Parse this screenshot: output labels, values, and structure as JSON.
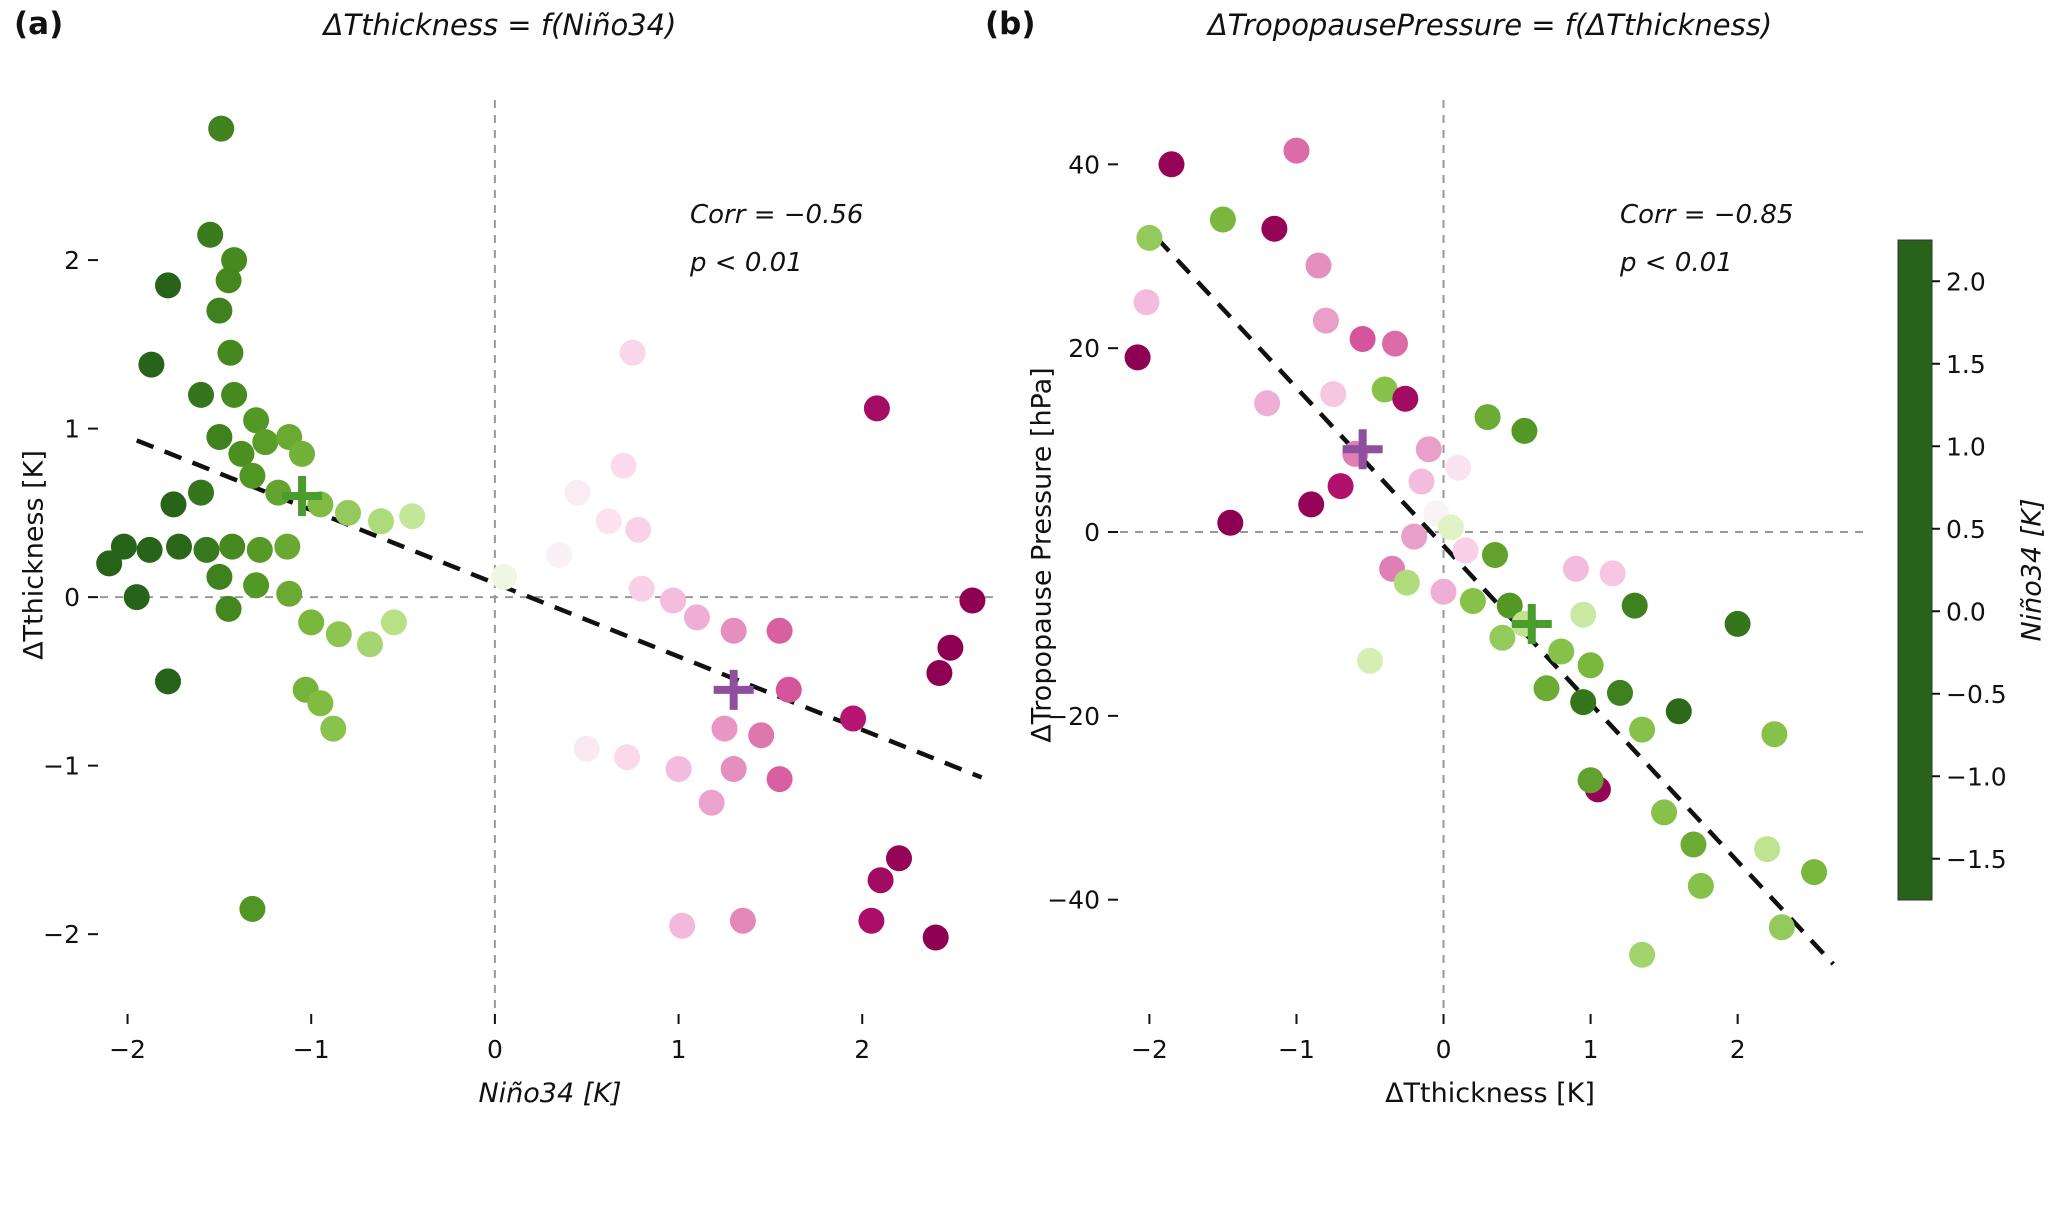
{
  "colorbar": {
    "label": "Niño34 [K]",
    "tick_labels": [
      "2.0",
      "1.5",
      "1.0",
      "0.5",
      "0.0",
      "−0.5",
      "−1.0",
      "−1.5"
    ],
    "tick_values": [
      2.0,
      1.5,
      1.0,
      0.5,
      0.0,
      -0.5,
      -1.0,
      -1.5
    ],
    "vmin": -1.75,
    "vmax": 2.25,
    "colormap": "PiYG_r",
    "colors": [
      "#276419",
      "#4d9221",
      "#7fbc41",
      "#b8e186",
      "#e6f5d0",
      "#f7f7f7",
      "#fde0ef",
      "#f1b6da",
      "#de77ae",
      "#c51b7d",
      "#8e0152"
    ]
  },
  "chart_data": [
    {
      "type": "scatter",
      "panel_label": "(a)",
      "title": "ΔTthickness = f(Niño34)",
      "xlabel": "Niño34 [K]",
      "ylabel": "ΔTthickness [K]",
      "corr_text": "Corr = −0.56",
      "p_text": "p < 0.01",
      "xlim": [
        -2.15,
        2.75
      ],
      "ylim": [
        -2.45,
        2.95
      ],
      "xticks": {
        "values": [
          -2,
          -1,
          0,
          1,
          2
        ],
        "labels": [
          "−2",
          "−1",
          "0",
          "1",
          "2"
        ]
      },
      "yticks": {
        "values": [
          -2,
          -1,
          0,
          1,
          2
        ],
        "labels": [
          "−2",
          "−1",
          "0",
          "1",
          "2"
        ]
      },
      "zero_lines": true,
      "regression_line": {
        "x1": -1.95,
        "y1": 0.93,
        "x2": 2.65,
        "y2": -1.07
      },
      "means": [
        {
          "x": -1.05,
          "y": 0.6,
          "color": "#4a9d2d",
          "name": "composite-mean-negative"
        },
        {
          "x": 1.3,
          "y": -0.55,
          "color": "#8e4f9f",
          "name": "composite-mean-positive"
        }
      ],
      "color_by": "x",
      "points": [
        [
          -1.49,
          2.78
        ],
        [
          -1.55,
          2.15
        ],
        [
          -1.42,
          2.0
        ],
        [
          -1.78,
          1.85
        ],
        [
          -1.45,
          1.88
        ],
        [
          -1.5,
          1.7
        ],
        [
          -1.44,
          1.45
        ],
        [
          -1.87,
          1.38
        ],
        [
          -1.6,
          1.2
        ],
        [
          -1.42,
          1.2
        ],
        [
          -1.3,
          1.05
        ],
        [
          -1.5,
          0.95
        ],
        [
          -1.38,
          0.85
        ],
        [
          -1.25,
          0.92
        ],
        [
          -1.12,
          0.95
        ],
        [
          -1.05,
          0.85
        ],
        [
          -1.32,
          0.72
        ],
        [
          -1.6,
          0.62
        ],
        [
          -1.75,
          0.55
        ],
        [
          -1.18,
          0.62
        ],
        [
          -0.95,
          0.55
        ],
        [
          -0.8,
          0.5
        ],
        [
          -0.62,
          0.45
        ],
        [
          -0.45,
          0.48
        ],
        [
          -2.02,
          0.3
        ],
        [
          -1.88,
          0.28
        ],
        [
          -1.72,
          0.3
        ],
        [
          -1.57,
          0.28
        ],
        [
          -1.43,
          0.3
        ],
        [
          -1.28,
          0.28
        ],
        [
          -1.13,
          0.3
        ],
        [
          -2.1,
          0.2
        ],
        [
          -1.5,
          0.12
        ],
        [
          -1.3,
          0.07
        ],
        [
          -1.12,
          0.02
        ],
        [
          -1.95,
          0.0
        ],
        [
          -1.45,
          -0.07
        ],
        [
          -1.0,
          -0.15
        ],
        [
          -0.85,
          -0.22
        ],
        [
          -0.68,
          -0.28
        ],
        [
          -0.55,
          -0.15
        ],
        [
          -1.78,
          -0.5
        ],
        [
          -1.03,
          -0.55
        ],
        [
          -0.95,
          -0.63
        ],
        [
          -0.88,
          -0.78
        ],
        [
          -1.32,
          -1.85
        ],
        [
          0.75,
          1.45
        ],
        [
          2.08,
          1.12
        ],
        [
          0.7,
          0.78
        ],
        [
          0.45,
          0.62
        ],
        [
          0.62,
          0.45
        ],
        [
          0.78,
          0.4
        ],
        [
          0.35,
          0.25
        ],
        [
          0.05,
          0.12
        ],
        [
          0.8,
          0.05
        ],
        [
          0.97,
          -0.02
        ],
        [
          2.6,
          -0.02
        ],
        [
          1.1,
          -0.12
        ],
        [
          1.3,
          -0.2
        ],
        [
          1.55,
          -0.2
        ],
        [
          2.48,
          -0.3
        ],
        [
          2.42,
          -0.45
        ],
        [
          1.6,
          -0.55
        ],
        [
          1.95,
          -0.72
        ],
        [
          1.25,
          -0.78
        ],
        [
          1.45,
          -0.82
        ],
        [
          0.5,
          -0.9
        ],
        [
          0.72,
          -0.95
        ],
        [
          1.0,
          -1.02
        ],
        [
          1.3,
          -1.02
        ],
        [
          1.55,
          -1.08
        ],
        [
          1.18,
          -1.22
        ],
        [
          2.2,
          -1.55
        ],
        [
          2.1,
          -1.68
        ],
        [
          1.02,
          -1.95
        ],
        [
          1.35,
          -1.92
        ],
        [
          2.05,
          -1.92
        ],
        [
          2.4,
          -2.02
        ]
      ]
    },
    {
      "type": "scatter",
      "panel_label": "(b)",
      "title": "ΔTropopausePressure = f(ΔTthickness)",
      "xlabel": "ΔTthickness [K]",
      "ylabel": "ΔTropopause Pressure [hPa]",
      "corr_text": "Corr = −0.85",
      "p_text": "p < 0.01",
      "xlim": [
        -2.2,
        2.9
      ],
      "ylim": [
        -52,
        47
      ],
      "xticks": {
        "values": [
          -2,
          -1,
          0,
          1,
          2
        ],
        "labels": [
          "−2",
          "−1",
          "0",
          "1",
          "2"
        ]
      },
      "yticks": {
        "values": [
          40,
          20,
          0,
          -20,
          -40
        ],
        "labels": [
          "40",
          "20",
          "0",
          "−20",
          "−40"
        ]
      },
      "zero_lines": true,
      "regression_line": {
        "x1": -1.95,
        "y1": 32,
        "x2": 2.65,
        "y2": -47
      },
      "means": [
        {
          "x": -0.55,
          "y": 9,
          "color": "#8e4f9f",
          "name": "composite-mean-positive"
        },
        {
          "x": 0.6,
          "y": -10,
          "color": "#4a9d2d",
          "name": "composite-mean-negative"
        }
      ],
      "color_by": "value",
      "points": [
        [
          -1.85,
          40,
          2.2
        ],
        [
          -1.0,
          41.5,
          1.5
        ],
        [
          -1.5,
          34,
          -1.0
        ],
        [
          -1.15,
          33,
          2.2
        ],
        [
          -2.0,
          32,
          -0.8
        ],
        [
          -0.85,
          29,
          1.3
        ],
        [
          -2.02,
          25,
          1.0
        ],
        [
          -0.8,
          23,
          1.2
        ],
        [
          -2.08,
          19,
          2.3
        ],
        [
          -0.55,
          21,
          1.6
        ],
        [
          -0.33,
          20.5,
          1.5
        ],
        [
          -0.75,
          15,
          0.9
        ],
        [
          -1.2,
          14,
          1.1
        ],
        [
          -0.4,
          15.5,
          -0.9
        ],
        [
          -0.26,
          14.5,
          2.1
        ],
        [
          0.3,
          12.5,
          -1.1
        ],
        [
          0.55,
          11,
          -1.3
        ],
        [
          -0.6,
          8.5,
          1.4
        ],
        [
          -0.1,
          9,
          1.2
        ],
        [
          0.1,
          7,
          0.6
        ],
        [
          -0.7,
          5,
          2.0
        ],
        [
          -0.9,
          3,
          2.2
        ],
        [
          -1.45,
          1,
          2.3
        ],
        [
          -0.15,
          5.5,
          1.0
        ],
        [
          -0.05,
          2,
          0.3
        ],
        [
          0.05,
          0.5,
          -0.2
        ],
        [
          -0.2,
          -0.5,
          1.2
        ],
        [
          0.15,
          -2,
          0.8
        ],
        [
          0.35,
          -2.5,
          -1.2
        ],
        [
          -0.35,
          -4,
          1.4
        ],
        [
          -0.25,
          -5.5,
          -0.6
        ],
        [
          0.0,
          -6.5,
          1.1
        ],
        [
          0.2,
          -7.5,
          -0.9
        ],
        [
          0.45,
          -8,
          -1.3
        ],
        [
          0.9,
          -4,
          1.0
        ],
        [
          1.15,
          -4.5,
          0.9
        ],
        [
          0.55,
          -10,
          -0.5
        ],
        [
          0.4,
          -11.5,
          -0.8
        ],
        [
          0.95,
          -9,
          -0.4
        ],
        [
          1.3,
          -8,
          -1.5
        ],
        [
          2.0,
          -10,
          -1.6
        ],
        [
          0.8,
          -13,
          -0.9
        ],
        [
          1.0,
          -14.5,
          -1.0
        ],
        [
          -0.5,
          -14,
          -0.3
        ],
        [
          0.7,
          -17,
          -1.1
        ],
        [
          0.95,
          -18.5,
          -1.6
        ],
        [
          1.2,
          -17.5,
          -1.5
        ],
        [
          1.6,
          -19.5,
          -1.7
        ],
        [
          1.35,
          -21.5,
          -0.9
        ],
        [
          2.25,
          -22,
          -0.9
        ],
        [
          1.05,
          -28,
          2.2
        ],
        [
          1.0,
          -27,
          -1.2
        ],
        [
          1.5,
          -30.5,
          -0.9
        ],
        [
          1.7,
          -34,
          -1.1
        ],
        [
          2.2,
          -34.5,
          -0.5
        ],
        [
          1.75,
          -38.5,
          -0.9
        ],
        [
          2.3,
          -43,
          -0.8
        ],
        [
          1.35,
          -46,
          -0.7
        ],
        [
          2.52,
          -37,
          -1.0
        ]
      ]
    }
  ]
}
